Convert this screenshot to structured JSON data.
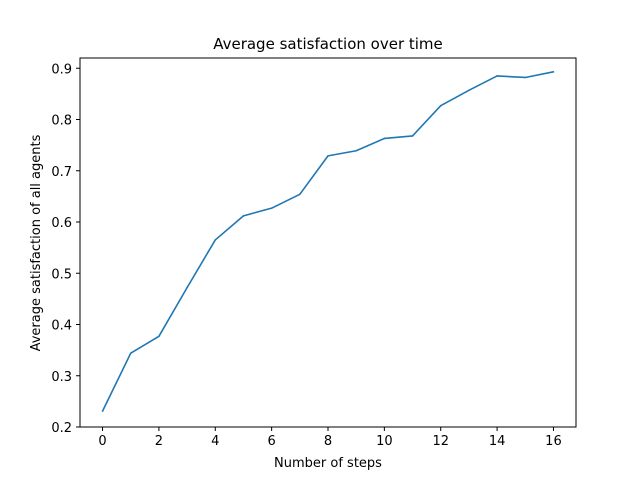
{
  "chart_data": {
    "type": "line",
    "title": "Average satisfaction over time",
    "xlabel": "Number of steps",
    "ylabel": "Average satisfaction of all agents",
    "x": [
      0,
      1,
      2,
      3,
      4,
      5,
      6,
      7,
      8,
      9,
      10,
      11,
      12,
      13,
      14,
      15,
      16
    ],
    "series": [
      {
        "values": [
          0.231,
          0.344,
          0.377,
          0.472,
          0.565,
          0.612,
          0.627,
          0.654,
          0.729,
          0.739,
          0.763,
          0.768,
          0.827,
          0.857,
          0.885,
          0.882,
          0.893
        ],
        "color": "#1f77b4"
      }
    ],
    "xlim": [
      -0.8,
      16.8
    ],
    "ylim": [
      0.2,
      0.92
    ],
    "x_ticks": [
      "0",
      "2",
      "4",
      "6",
      "8",
      "10",
      "12",
      "14",
      "16"
    ],
    "y_ticks": [
      "0.2",
      "0.3",
      "0.4",
      "0.5",
      "0.6",
      "0.7",
      "0.8",
      "0.9"
    ],
    "grid": false,
    "legend": "none"
  }
}
